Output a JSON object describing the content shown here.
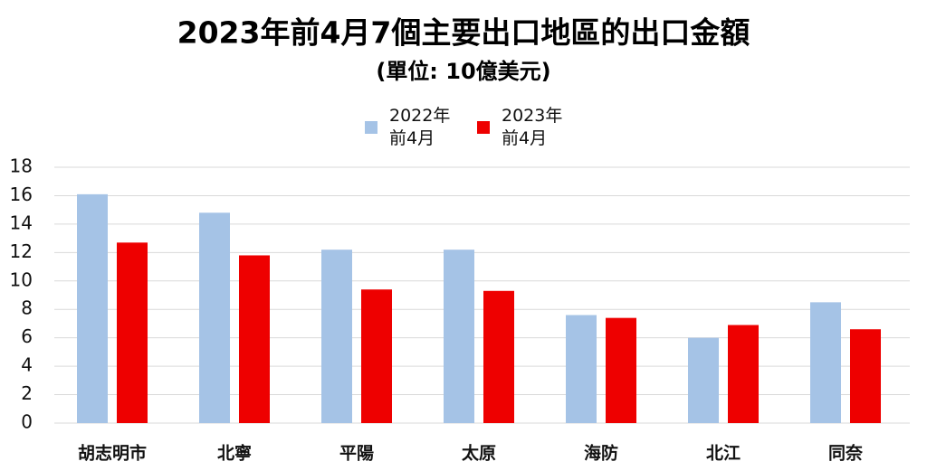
{
  "chart_data": {
    "type": "bar",
    "title": "2023年前4月7個主要出口地區的出口金額",
    "subtitle": "(單位: 10億美元)",
    "categories": [
      "胡志明市",
      "北寧",
      "平陽",
      "太原",
      "海防",
      "北江",
      "同奈"
    ],
    "series": [
      {
        "name": "2022年\n前4月",
        "color": "#a5c3e6",
        "values": [
          16.1,
          14.8,
          12.2,
          12.2,
          7.6,
          6.0,
          8.5
        ]
      },
      {
        "name": "2023年\n前4月",
        "color": "#ee0000",
        "values": [
          12.7,
          11.8,
          9.4,
          9.3,
          7.4,
          6.9,
          6.6
        ]
      }
    ],
    "ylim": [
      0,
      18
    ],
    "yticks": [
      0,
      2,
      4,
      6,
      8,
      10,
      12,
      14,
      16,
      18
    ],
    "grid": true,
    "legend": "top"
  }
}
